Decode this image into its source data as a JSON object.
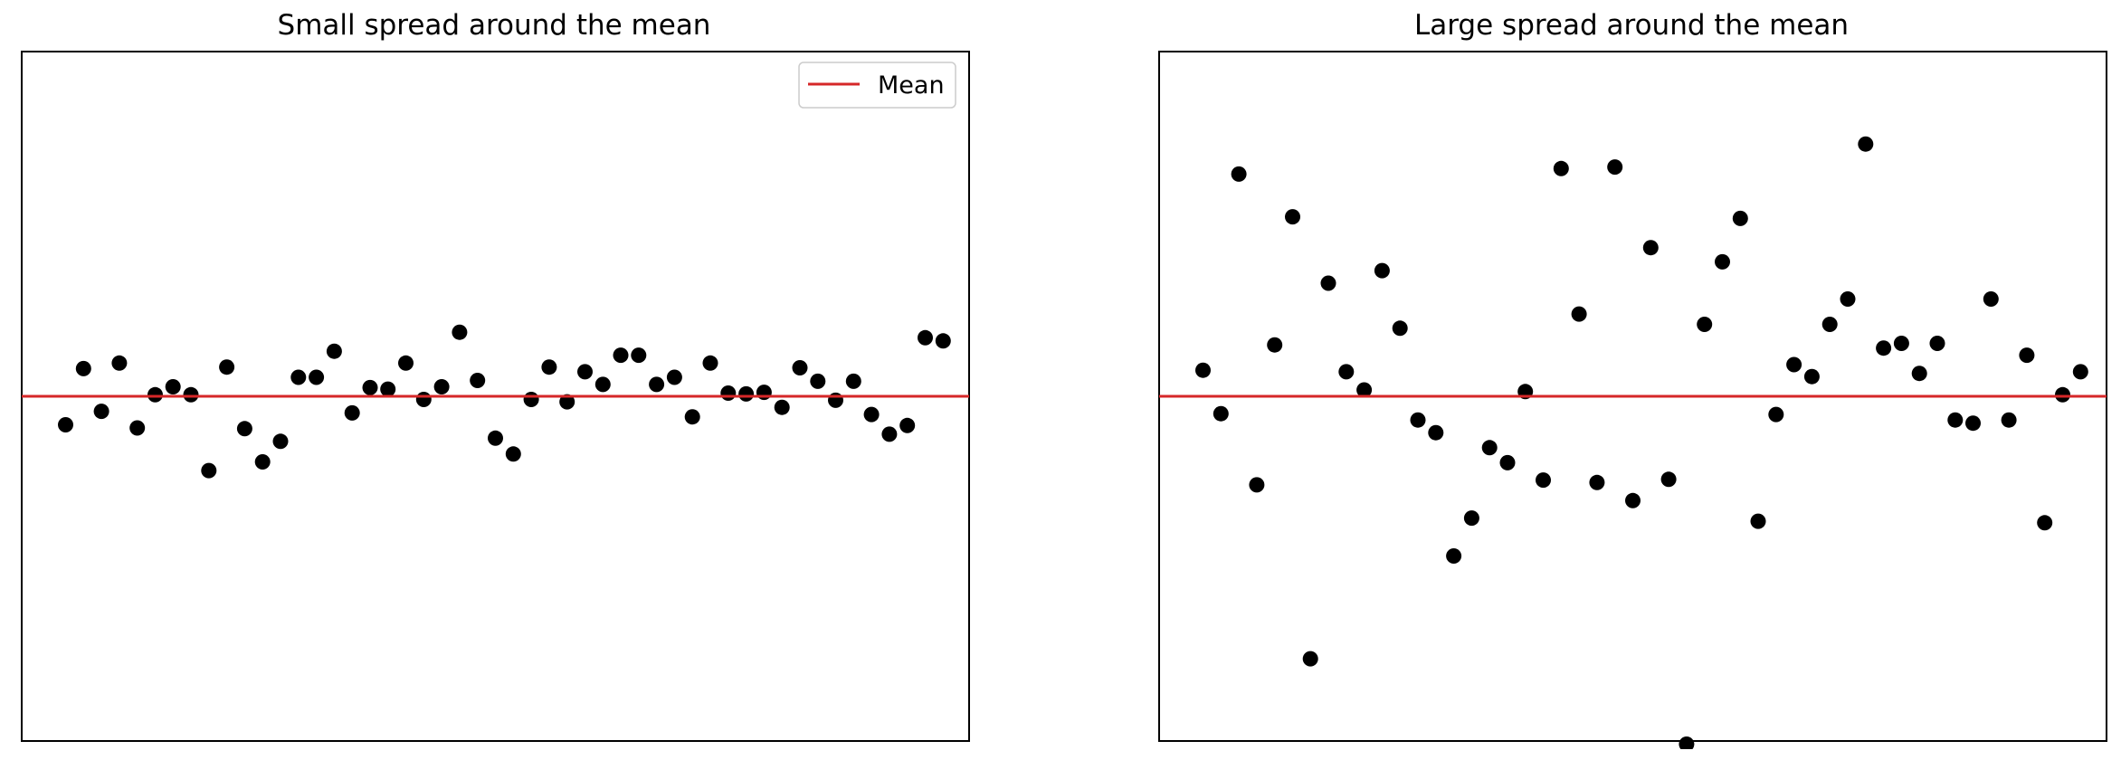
{
  "colors": {
    "mean_line": "#d62728",
    "marker": "#000000",
    "axes": "#000000",
    "legend_border": "#cccccc"
  },
  "chart_data": [
    {
      "type": "scatter",
      "title": "Small spread around the mean",
      "xlabel": "",
      "ylabel": "",
      "xlim": [
        -1.45,
        51.45
      ],
      "ylim": [
        -4.36,
        4.36
      ],
      "grid": false,
      "ticks": "hidden",
      "legend": {
        "location": "upper right",
        "entries": [
          "Mean"
        ]
      },
      "mean": 0,
      "x": [
        1,
        2,
        3,
        4,
        5,
        6,
        7,
        8,
        9,
        10,
        11,
        12,
        13,
        14,
        15,
        16,
        17,
        18,
        19,
        20,
        21,
        22,
        23,
        24,
        25,
        26,
        27,
        28,
        29,
        30,
        31,
        32,
        33,
        34,
        35,
        36,
        37,
        38,
        39,
        40,
        41,
        42,
        43,
        44,
        45,
        46,
        47,
        48,
        49,
        50
      ],
      "y": [
        -0.36,
        0.35,
        -0.19,
        0.42,
        -0.4,
        0.02,
        0.12,
        0.02,
        -0.94,
        0.37,
        -0.41,
        -0.83,
        -0.57,
        0.24,
        0.24,
        0.57,
        -0.21,
        0.11,
        0.09,
        0.42,
        -0.04,
        0.12,
        0.81,
        0.2,
        -0.53,
        -0.73,
        -0.04,
        0.37,
        -0.07,
        0.31,
        0.15,
        0.52,
        0.52,
        0.15,
        0.24,
        -0.26,
        0.42,
        0.04,
        0.03,
        0.05,
        -0.14,
        0.36,
        0.19,
        -0.05,
        0.19,
        -0.23,
        -0.48,
        -0.37,
        0.74,
        0.7
      ]
    },
    {
      "type": "scatter",
      "title": "Large spread around the mean",
      "xlabel": "",
      "ylabel": "",
      "xlim": [
        -1.45,
        51.45
      ],
      "ylim": [
        -4.36,
        4.36
      ],
      "grid": false,
      "ticks": "hidden",
      "mean": 0,
      "x": [
        1,
        2,
        3,
        4,
        5,
        6,
        7,
        8,
        9,
        10,
        11,
        12,
        13,
        14,
        15,
        16,
        17,
        18,
        19,
        20,
        21,
        22,
        23,
        24,
        25,
        26,
        27,
        28,
        29,
        30,
        31,
        32,
        33,
        34,
        35,
        36,
        37,
        38,
        39,
        40,
        41,
        42,
        43,
        44,
        45,
        46,
        47,
        48,
        49,
        50
      ],
      "y": [
        0.33,
        -0.22,
        2.81,
        -1.12,
        0.65,
        2.27,
        -3.32,
        1.43,
        0.31,
        0.08,
        1.59,
        0.86,
        -0.3,
        -0.46,
        -2.02,
        -1.54,
        -0.65,
        -0.84,
        0.06,
        -1.06,
        2.88,
        1.04,
        -1.09,
        2.9,
        -1.32,
        1.88,
        -1.05,
        -4.4,
        0.91,
        1.7,
        2.25,
        -1.58,
        -0.23,
        0.4,
        0.25,
        0.91,
        1.23,
        3.19,
        0.61,
        0.67,
        0.29,
        0.67,
        -0.3,
        -0.34,
        1.23,
        -0.3,
        0.52,
        -1.6,
        0.02,
        0.31
      ]
    }
  ]
}
